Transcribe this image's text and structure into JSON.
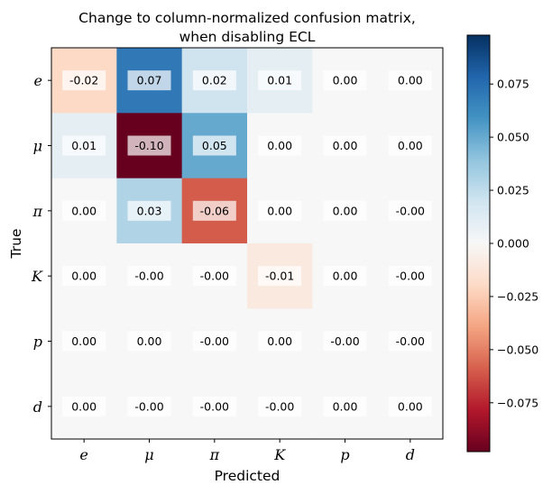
{
  "chart_data": {
    "type": "heatmap",
    "title": [
      "Change to column-normalized confusion matrix,",
      "when disabling ECL"
    ],
    "xlabel": "Predicted",
    "ylabel": "True",
    "x_categories": [
      "e",
      "μ",
      "π",
      "K",
      "p",
      "d"
    ],
    "y_categories": [
      "e",
      "μ",
      "π",
      "K",
      "p",
      "d"
    ],
    "values": [
      [
        -0.02,
        0.07,
        0.02,
        0.01,
        0.0,
        0.0
      ],
      [
        0.01,
        -0.1,
        0.05,
        0.0,
        0.0,
        0.0
      ],
      [
        0.0,
        0.03,
        -0.06,
        0.0,
        0.0,
        -0.0
      ],
      [
        0.0,
        -0.0,
        -0.0,
        -0.01,
        0.0,
        -0.0
      ],
      [
        0.0,
        0.0,
        -0.0,
        0.0,
        -0.0,
        -0.0
      ],
      [
        0.0,
        -0.0,
        -0.0,
        -0.0,
        0.0,
        0.0
      ]
    ],
    "cell_labels": [
      [
        "-0.02",
        "0.07",
        "0.02",
        "0.01",
        "0.00",
        "0.00"
      ],
      [
        "0.01",
        "-0.10",
        "0.05",
        "0.00",
        "0.00",
        "0.00"
      ],
      [
        "0.00",
        "0.03",
        "-0.06",
        "0.00",
        "0.00",
        "-0.00"
      ],
      [
        "0.00",
        "-0.00",
        "-0.00",
        "-0.01",
        "0.00",
        "-0.00"
      ],
      [
        "0.00",
        "0.00",
        "-0.00",
        "0.00",
        "-0.00",
        "-0.00"
      ],
      [
        "0.00",
        "-0.00",
        "-0.00",
        "-0.00",
        "0.00",
        "0.00"
      ]
    ],
    "colormap": "RdBu",
    "colorbar_range": [
      -0.098,
      0.098
    ],
    "colorbar_ticks": [
      -0.075,
      -0.05,
      -0.025,
      0.0,
      0.025,
      0.05,
      0.075
    ],
    "colorbar_tick_labels": [
      "−0.075",
      "−0.050",
      "−0.025",
      "0.000",
      "0.025",
      "0.050",
      "0.075"
    ],
    "grid": false
  }
}
